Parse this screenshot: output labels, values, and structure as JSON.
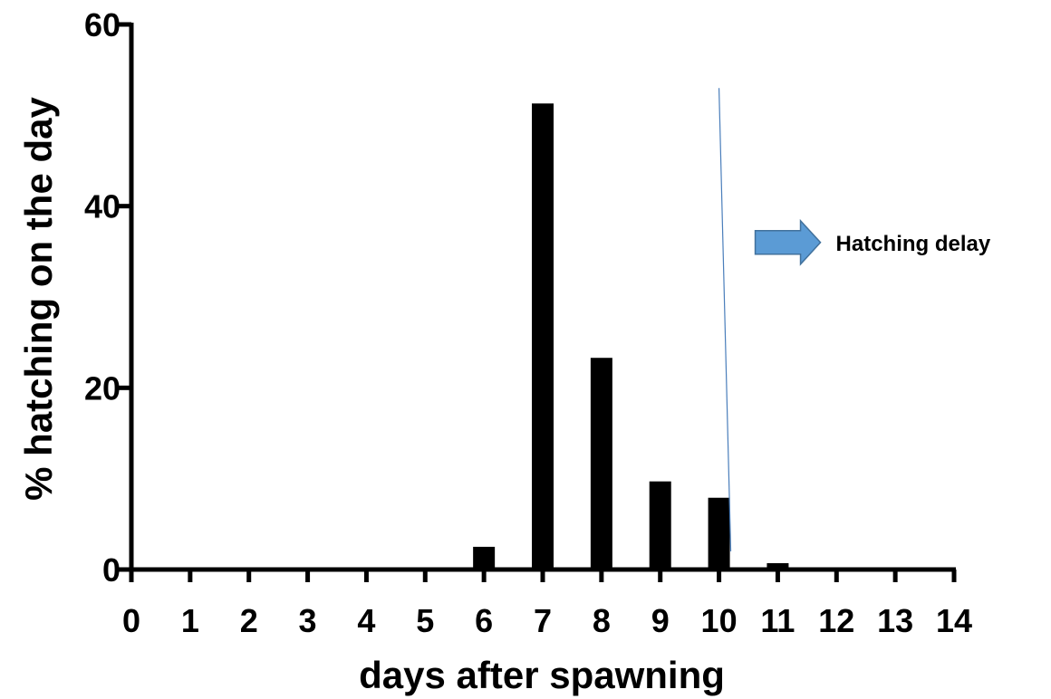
{
  "chart_data": {
    "type": "bar",
    "title": "",
    "xlabel": "days after spawning",
    "ylabel": "%  hatching on the day",
    "x": [
      0,
      1,
      2,
      3,
      4,
      5,
      6,
      7,
      8,
      9,
      10,
      11,
      12,
      13,
      14
    ],
    "x_tick_labels": [
      "0",
      "1",
      "2",
      "3",
      "4",
      "5",
      "6",
      "7",
      "8",
      "9",
      "10",
      "11",
      "12",
      "13",
      "14"
    ],
    "values": [
      0,
      0,
      0,
      0,
      0,
      0,
      2.5,
      51.3,
      23.3,
      9.7,
      7.9,
      0.7,
      0.2,
      0,
      0
    ],
    "xlim": [
      0,
      14
    ],
    "ylim": [
      0,
      60
    ],
    "y_ticks": [
      0,
      20,
      40,
      60
    ],
    "bar_color": "#000000",
    "grid": false,
    "legend": "none",
    "annotations": [
      {
        "text": "Hatching delay",
        "arrow": "right",
        "arrow_color": "#5b9bd5",
        "x": 10.2,
        "y": 36
      }
    ],
    "reference_line": {
      "x_start": 10.0,
      "y_start": 53,
      "x_end": 10.2,
      "y_end": 2,
      "color": "#4a7ebb"
    }
  }
}
